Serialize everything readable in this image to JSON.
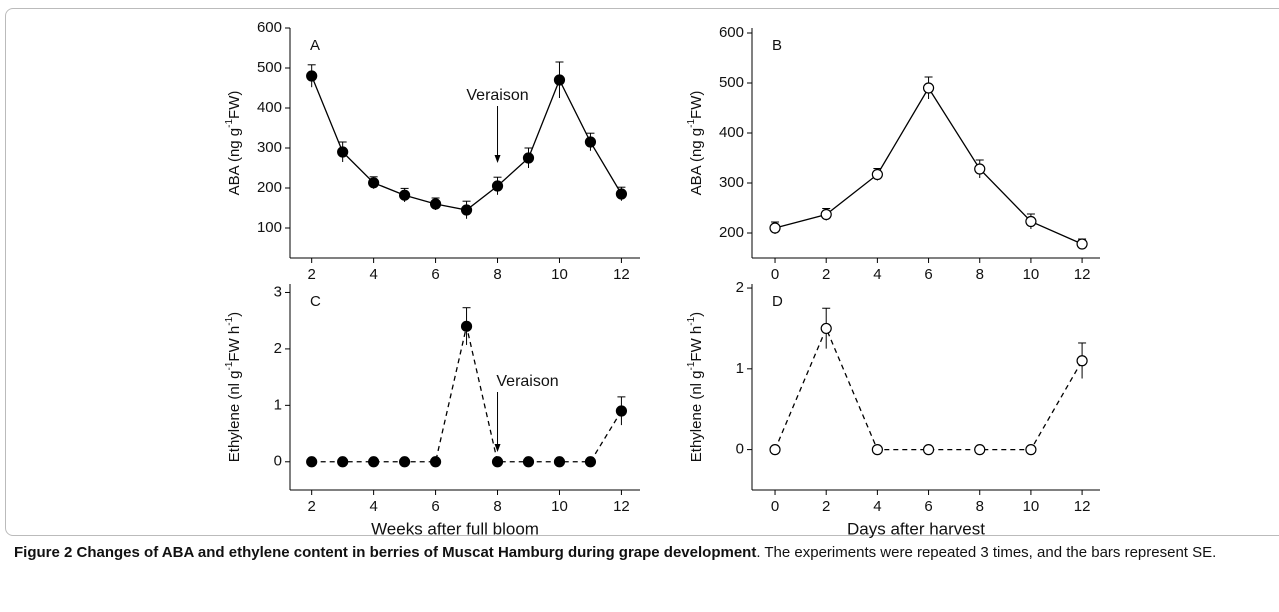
{
  "chart_data": [
    {
      "type": "line",
      "label": "A",
      "ylabel": [
        "ABA (ng g",
        "-1",
        "FW)"
      ],
      "x": [
        2,
        3,
        4,
        5,
        6,
        7,
        8,
        9,
        10,
        11,
        12
      ],
      "series": [
        {
          "color": "#000000",
          "marker": "filled",
          "line_style": "solid",
          "values": [
            480,
            290,
            213,
            182,
            160,
            145,
            205,
            275,
            470,
            315,
            185
          ],
          "errors": [
            28,
            25,
            15,
            17,
            15,
            22,
            22,
            25,
            45,
            22,
            17
          ]
        }
      ],
      "xlim": [
        1.3,
        12.6
      ],
      "xticks": [
        2,
        4,
        6,
        8,
        10,
        12
      ],
      "ylim": [
        25,
        600
      ],
      "yticks": [
        100,
        200,
        300,
        400,
        500,
        600
      ],
      "annotations": [
        {
          "text": "Veraison",
          "x": 8
        }
      ]
    },
    {
      "type": "line",
      "label": "B",
      "ylabel": [
        "ABA (ng g",
        "-1",
        "FW)"
      ],
      "x": [
        0,
        2,
        4,
        6,
        8,
        10,
        12
      ],
      "series": [
        {
          "color": "#000000",
          "marker": "open",
          "line_style": "solid",
          "values": [
            210,
            237,
            317,
            490,
            328,
            223,
            178
          ],
          "errors": [
            12,
            12,
            12,
            22,
            18,
            15,
            10
          ]
        }
      ],
      "xlim": [
        -0.9,
        12.7
      ],
      "xticks": [
        0,
        2,
        4,
        6,
        8,
        10,
        12
      ],
      "ylim": [
        150,
        610
      ],
      "yticks": [
        200,
        300,
        400,
        500,
        600
      ]
    },
    {
      "type": "line",
      "label": "C",
      "xlabel": "Weeks after full bloom",
      "ylabel": [
        "Ethylene (nl g",
        "-1",
        "FW h",
        "-1",
        ")"
      ],
      "x": [
        2,
        3,
        4,
        5,
        6,
        7,
        8,
        9,
        10,
        11,
        12
      ],
      "series": [
        {
          "color": "#000000",
          "marker": "filled",
          "line_style": "dashed",
          "values": [
            0,
            0,
            0,
            0,
            0,
            2.4,
            0,
            0,
            0,
            0,
            0.9
          ],
          "errors": [
            0,
            0,
            0,
            0,
            0,
            0.33,
            0,
            0,
            0,
            0,
            0.25
          ]
        }
      ],
      "xlim": [
        1.3,
        12.6
      ],
      "xticks": [
        2,
        4,
        6,
        8,
        10,
        12
      ],
      "ylim": [
        -0.5,
        3.15
      ],
      "yticks": [
        0,
        1,
        2,
        3
      ],
      "annotations": [
        {
          "text": "Veraison",
          "x": 8
        }
      ]
    },
    {
      "type": "line",
      "label": "D",
      "xlabel": "Days after harvest",
      "ylabel": [
        "Ethylene (nl g",
        "-1",
        "FW h",
        "-1",
        ")"
      ],
      "x": [
        0,
        2,
        4,
        6,
        8,
        10,
        12
      ],
      "series": [
        {
          "color": "#000000",
          "marker": "open",
          "line_style": "dashed",
          "values": [
            0,
            1.5,
            0,
            0,
            0,
            0,
            1.1
          ],
          "errors": [
            0,
            0.25,
            0,
            0,
            0,
            0,
            0.22
          ]
        }
      ],
      "xlim": [
        -0.9,
        12.7
      ],
      "xticks": [
        0,
        2,
        4,
        6,
        8,
        10,
        12
      ],
      "ylim": [
        -0.5,
        2.05
      ],
      "yticks": [
        0,
        1,
        2
      ]
    }
  ],
  "caption": {
    "title": "Figure 2 Changes of ABA and ethylene content in berries of Muscat Hamburg during grape development",
    "text": ". The experiments were repeated 3 times, and the bars represent SE."
  }
}
